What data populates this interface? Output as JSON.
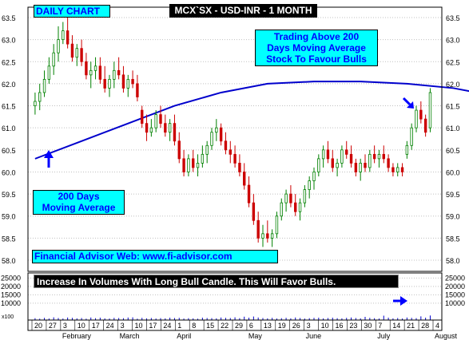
{
  "chart_data": {
    "type": "candlestick",
    "title": "MCX`SX - USD-INR - 1 MONTH",
    "period_label": "DAILY CHART",
    "price_axis": {
      "min": 58.0,
      "max": 63.5,
      "ticks": [
        "63.5",
        "63.0",
        "62.5",
        "62.0",
        "61.5",
        "61.0",
        "60.5",
        "60.0",
        "59.5",
        "59.0",
        "58.5",
        "58.0"
      ],
      "tick_values": [
        63.5,
        63.0,
        62.5,
        62.0,
        61.5,
        61.0,
        60.5,
        60.0,
        59.5,
        59.0,
        58.5,
        58.0
      ]
    },
    "volume_axis": {
      "ticks": [
        "25000",
        "20000",
        "15000",
        "10000"
      ],
      "tick_values": [
        25000,
        20000,
        15000,
        10000
      ],
      "min": 0,
      "max": 28000,
      "scale_label": "x100"
    },
    "x_day_labels": [
      "20",
      "27",
      "3",
      "10",
      "17",
      "24",
      "3",
      "10",
      "17",
      "24",
      "1",
      "8",
      "15",
      "22",
      "29",
      "6",
      "13",
      "19",
      "26",
      "3",
      "10",
      "16",
      "23",
      "30",
      "7",
      "14",
      "21",
      "28",
      "4"
    ],
    "x_month_labels": [
      "February",
      "March",
      "April",
      "May",
      "June",
      "July",
      "August"
    ],
    "moving_average": {
      "name": "200 Days Moving Average",
      "points": [
        [
          0,
          60.3
        ],
        [
          10,
          60.7
        ],
        [
          20,
          61.1
        ],
        [
          30,
          61.5
        ],
        [
          40,
          61.8
        ],
        [
          50,
          62.0
        ],
        [
          60,
          62.05
        ],
        [
          70,
          62.05
        ],
        [
          80,
          62.0
        ],
        [
          90,
          61.9
        ],
        [
          100,
          61.7
        ],
        [
          108,
          61.45
        ],
        [
          114,
          61.3
        ],
        [
          122,
          61.2
        ]
      ]
    },
    "candles": [
      [
        0,
        61.5,
        61.8,
        61.3,
        61.6
      ],
      [
        1,
        61.6,
        62.0,
        61.4,
        61.8
      ],
      [
        2,
        61.8,
        62.3,
        61.7,
        62.1
      ],
      [
        3,
        62.1,
        62.6,
        62.0,
        62.4
      ],
      [
        4,
        62.4,
        62.9,
        62.2,
        62.7
      ],
      [
        5,
        62.7,
        63.3,
        62.5,
        63.0
      ],
      [
        6,
        63.0,
        63.4,
        62.9,
        63.2
      ],
      [
        7,
        63.2,
        63.5,
        62.8,
        62.9
      ],
      [
        8,
        62.9,
        63.1,
        62.5,
        62.6
      ],
      [
        9,
        62.6,
        62.9,
        62.4,
        62.8
      ],
      [
        10,
        62.8,
        63.0,
        62.4,
        62.5
      ],
      [
        11,
        62.5,
        62.7,
        62.1,
        62.2
      ],
      [
        12,
        62.2,
        62.5,
        61.9,
        62.3
      ],
      [
        13,
        62.3,
        62.6,
        62.1,
        62.4
      ],
      [
        14,
        62.4,
        62.6,
        62.0,
        62.1
      ],
      [
        15,
        62.1,
        62.4,
        61.8,
        61.9
      ],
      [
        16,
        61.9,
        62.2,
        61.7,
        62.1
      ],
      [
        17,
        62.1,
        62.5,
        61.9,
        62.3
      ],
      [
        18,
        62.3,
        62.6,
        62.1,
        62.2
      ],
      [
        19,
        62.2,
        62.4,
        61.8,
        61.9
      ],
      [
        20,
        61.9,
        62.2,
        61.7,
        62.1
      ],
      [
        21,
        62.1,
        62.3,
        61.9,
        62.0
      ],
      [
        22,
        62.0,
        62.2,
        61.6,
        61.7
      ],
      [
        23,
        61.4,
        61.5,
        61.0,
        61.1
      ],
      [
        24,
        61.1,
        61.3,
        60.7,
        60.9
      ],
      [
        25,
        60.9,
        61.2,
        60.8,
        61.0
      ],
      [
        26,
        61.0,
        61.4,
        60.9,
        61.3
      ],
      [
        27,
        61.3,
        61.5,
        61.0,
        61.1
      ],
      [
        28,
        61.1,
        61.3,
        60.8,
        60.9
      ],
      [
        29,
        60.9,
        61.2,
        60.7,
        61.1
      ],
      [
        30,
        61.1,
        61.3,
        60.6,
        60.7
      ],
      [
        31,
        60.7,
        60.9,
        60.2,
        60.3
      ],
      [
        32,
        60.3,
        60.5,
        59.9,
        60.0
      ],
      [
        33,
        60.0,
        60.4,
        59.9,
        60.3
      ],
      [
        34,
        60.3,
        60.5,
        60.0,
        60.1
      ],
      [
        35,
        60.1,
        60.4,
        59.9,
        60.2
      ],
      [
        36,
        60.2,
        60.6,
        60.1,
        60.4
      ],
      [
        37,
        60.4,
        60.7,
        60.2,
        60.6
      ],
      [
        38,
        60.6,
        61.0,
        60.5,
        60.9
      ],
      [
        39,
        60.9,
        61.2,
        60.7,
        61.0
      ],
      [
        40,
        61.0,
        61.1,
        60.6,
        60.7
      ],
      [
        41,
        60.7,
        60.9,
        60.4,
        60.5
      ],
      [
        42,
        60.5,
        60.7,
        60.2,
        60.4
      ],
      [
        43,
        60.4,
        60.6,
        60.1,
        60.2
      ],
      [
        44,
        60.2,
        60.4,
        59.9,
        60.0
      ],
      [
        45,
        60.0,
        60.2,
        59.6,
        59.7
      ],
      [
        46,
        59.7,
        59.9,
        59.2,
        59.3
      ],
      [
        47,
        59.3,
        59.5,
        58.8,
        58.9
      ],
      [
        48,
        58.9,
        59.1,
        58.4,
        58.5
      ],
      [
        49,
        58.5,
        58.8,
        58.3,
        58.6
      ],
      [
        50,
        58.6,
        58.9,
        58.4,
        58.5
      ],
      [
        51,
        58.5,
        58.7,
        58.3,
        58.6
      ],
      [
        52,
        58.6,
        59.1,
        58.5,
        59.0
      ],
      [
        53,
        59.0,
        59.4,
        58.9,
        59.3
      ],
      [
        54,
        59.3,
        59.6,
        59.1,
        59.5
      ],
      [
        55,
        59.5,
        59.7,
        59.2,
        59.3
      ],
      [
        56,
        59.3,
        59.5,
        59.0,
        59.1
      ],
      [
        57,
        59.1,
        59.4,
        58.9,
        59.3
      ],
      [
        58,
        59.3,
        59.7,
        59.2,
        59.6
      ],
      [
        59,
        59.6,
        59.9,
        59.4,
        59.8
      ],
      [
        60,
        59.8,
        60.1,
        59.6,
        60.0
      ],
      [
        61,
        60.0,
        60.4,
        59.9,
        60.3
      ],
      [
        62,
        60.3,
        60.6,
        60.1,
        60.5
      ],
      [
        63,
        60.5,
        60.7,
        60.2,
        60.3
      ],
      [
        64,
        60.3,
        60.5,
        60.0,
        60.1
      ],
      [
        65,
        60.1,
        60.3,
        59.9,
        60.2
      ],
      [
        66,
        60.2,
        60.6,
        60.1,
        60.5
      ],
      [
        67,
        60.5,
        60.7,
        60.3,
        60.4
      ],
      [
        68,
        60.4,
        60.6,
        60.1,
        60.2
      ],
      [
        69,
        60.2,
        60.3,
        59.9,
        60.0
      ],
      [
        70,
        60.0,
        60.3,
        59.8,
        60.2
      ],
      [
        71,
        60.2,
        60.4,
        60.0,
        60.1
      ],
      [
        72,
        60.1,
        60.5,
        60.0,
        60.4
      ],
      [
        73,
        60.4,
        60.6,
        60.2,
        60.3
      ],
      [
        74,
        60.3,
        60.5,
        60.1,
        60.4
      ],
      [
        75,
        60.4,
        60.6,
        60.2,
        60.3
      ],
      [
        76,
        60.3,
        60.4,
        60.0,
        60.1
      ],
      [
        77,
        60.1,
        60.2,
        59.9,
        60.0
      ],
      [
        78,
        60.0,
        60.2,
        59.9,
        60.1
      ],
      [
        79,
        60.1,
        60.2,
        59.9,
        60.0
      ],
      [
        80,
        60.4,
        60.7,
        60.3,
        60.6
      ],
      [
        81,
        60.6,
        61.1,
        60.5,
        61.0
      ],
      [
        82,
        61.0,
        61.5,
        60.9,
        61.4
      ],
      [
        83,
        61.4,
        61.6,
        61.1,
        61.2
      ],
      [
        84,
        61.2,
        61.3,
        60.8,
        60.9
      ],
      [
        85,
        61.0,
        61.9,
        60.9,
        61.8
      ]
    ],
    "volumes": [
      1100,
      800,
      1300,
      900,
      1600,
      1200,
      900,
      1500,
      1300,
      1000,
      1200,
      800,
      1500,
      1100,
      1400,
      1000,
      900,
      1300,
      1200,
      1100,
      1500,
      1600,
      800,
      1300,
      1000,
      1200,
      900,
      1100,
      1000,
      1400,
      1200,
      1300,
      900,
      1100,
      1000,
      800,
      1400,
      1200,
      1100,
      1000,
      1500,
      1300,
      1200,
      1600,
      1100,
      2000,
      1400,
      2100,
      1500,
      1200,
      1000,
      1300,
      900,
      1100,
      1300,
      1000,
      1500,
      1200,
      900,
      1100,
      1300,
      1400,
      1000,
      1200,
      1400,
      1100,
      1000,
      1300,
      1500,
      1200,
      1000,
      1900,
      1300,
      1100,
      900,
      2600,
      1400,
      1000,
      1200,
      900,
      1500,
      1300,
      1100,
      2200,
      1400,
      2700
    ]
  },
  "annotations": {
    "trading_above": "Trading Above 200\nDays Moving Average\nStock To Favour Bulls",
    "ma_label": "200 Days\nMoving Average",
    "website": "Financial Advisor Web: www.fi-advisor.com",
    "volume_note": "Increase In Volumes With Long Bull Candle. This Will Favor Bulls."
  },
  "colors": {
    "bull": "#008000",
    "bear": "#cc0000",
    "moving_average": "#0000cc",
    "arrow": "#0000ff",
    "volume": "#0000cc",
    "grid": "#c0c0c0",
    "label_bg": "#00ffff",
    "title_bg": "#000000"
  }
}
